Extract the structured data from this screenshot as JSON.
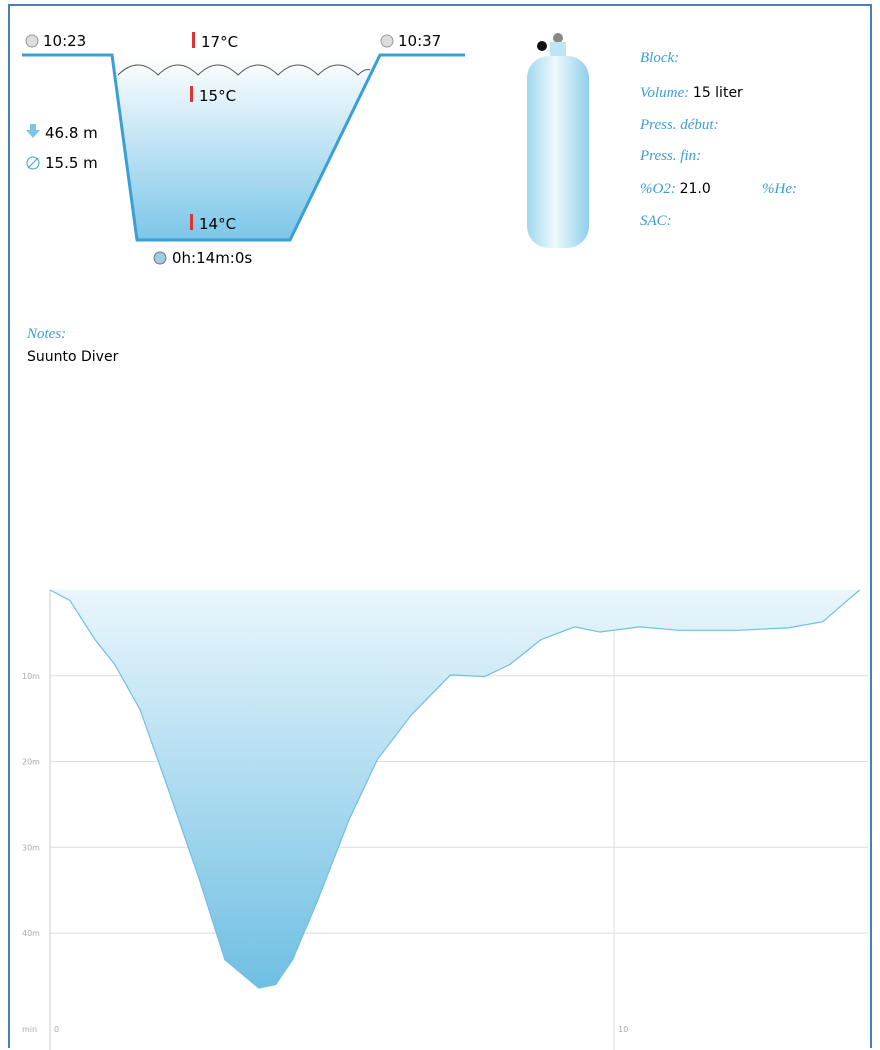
{
  "dive": {
    "start_time": "10:23",
    "end_time": "10:37",
    "surface_temp": "17°C",
    "mid_temp": "15°C",
    "bottom_temp": "14°C",
    "max_depth": "46.8 m",
    "avg_depth": "15.5 m",
    "duration": "0h:14m:0s"
  },
  "tank": {
    "block_label": "Block:",
    "volume_label": "Volume:",
    "volume": "15 liter",
    "press_start_label": "Press. début:",
    "press_end_label": "Press. fin:",
    "o2_label": "%O2:",
    "o2": "21.0",
    "he_label": "%He:",
    "sac_label": "SAC:"
  },
  "notes": {
    "label": "Notes:",
    "text": "Suunto Diver"
  },
  "chart_data": {
    "type": "area",
    "x_label": "min",
    "x": [
      0,
      0.35,
      0.8,
      1.15,
      1.6,
      2.1,
      2.65,
      3.1,
      3.7,
      4.0,
      4.3,
      4.75,
      5.3,
      5.8,
      6.4,
      7.1,
      7.7,
      8.15,
      8.7,
      9.3,
      9.75,
      10.45,
      11.15,
      12.2,
      13.1,
      13.7,
      14.05,
      14.35
    ],
    "values": [
      0,
      1.2,
      5.8,
      8.7,
      14,
      23.3,
      33.8,
      43.1,
      46.4,
      46,
      43.1,
      36.1,
      26.8,
      19.8,
      14.6,
      9.9,
      10.1,
      8.7,
      5.8,
      4.3,
      4.9,
      4.3,
      4.7,
      4.7,
      4.4,
      3.7,
      1.7,
      0
    ],
    "color": "#6fbfe3",
    "xlim": [
      0,
      14.5
    ],
    "ylim": [
      0,
      52
    ],
    "y_inverted": true,
    "xticks": [
      0,
      10
    ],
    "yticks": [
      {
        "value": 10,
        "label": "10m"
      },
      {
        "value": 20,
        "label": "20m"
      },
      {
        "value": 30,
        "label": "30m"
      },
      {
        "value": 40,
        "label": "40m"
      }
    ],
    "grid": true
  }
}
